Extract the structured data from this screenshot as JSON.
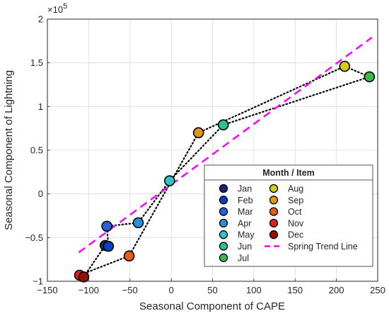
{
  "chart_data": {
    "type": "scatter",
    "xlabel": "Seasonal Component of CAPE",
    "ylabel": "Seasonal Component of Lightning",
    "y_exponent": "×10",
    "y_exponent_power": "5",
    "xlim": [
      -150,
      250
    ],
    "ylim": [
      -1,
      2
    ],
    "xticks": [
      "−150",
      "−100",
      "−50",
      "0",
      "50",
      "100",
      "150",
      "200",
      "250"
    ],
    "yticks": [
      "−1",
      "−0.5",
      "0",
      "0.5",
      "1",
      "1.5",
      "2"
    ],
    "xtick_values": [
      -150,
      -100,
      -50,
      0,
      50,
      100,
      150,
      200,
      250
    ],
    "ytick_values": [
      -1,
      -0.5,
      0,
      0.5,
      1,
      1.5,
      2
    ],
    "grid": true,
    "legend_position": "bottom-right",
    "legend_title": "Month / Item",
    "months": [
      {
        "name": "Jan",
        "color": "#1a237e",
        "x": -80,
        "y": -0.59
      },
      {
        "name": "Feb",
        "color": "#0d3fc4",
        "x": -76,
        "y": -0.6
      },
      {
        "name": "Mar",
        "color": "#2a63d8",
        "x": -78,
        "y": -0.37
      },
      {
        "name": "Apr",
        "color": "#2a8fd8",
        "x": -40,
        "y": -0.33
      },
      {
        "name": "May",
        "color": "#2ec4c8",
        "x": -2,
        "y": 0.15
      },
      {
        "name": "Jun",
        "color": "#2ec18a",
        "x": 63,
        "y": 0.79
      },
      {
        "name": "Jul",
        "color": "#3aba4a",
        "x": 240,
        "y": 1.34
      },
      {
        "name": "Aug",
        "color": "#d8c81e",
        "x": 210,
        "y": 1.46
      },
      {
        "name": "Sep",
        "color": "#e3951a",
        "x": 33,
        "y": 0.7
      },
      {
        "name": "Oct",
        "color": "#ea5a1c",
        "x": -51,
        "y": -0.71
      },
      {
        "name": "Nov",
        "color": "#e02020",
        "x": -111,
        "y": -0.93
      },
      {
        "name": "Dec",
        "color": "#9a0d0d",
        "x": -106,
        "y": -0.95
      }
    ],
    "trend_line": {
      "name": "Spring Trend Line",
      "color": "#ff00ff",
      "x": [
        -112,
        243
      ],
      "y": [
        -0.67,
        1.79
      ]
    }
  }
}
